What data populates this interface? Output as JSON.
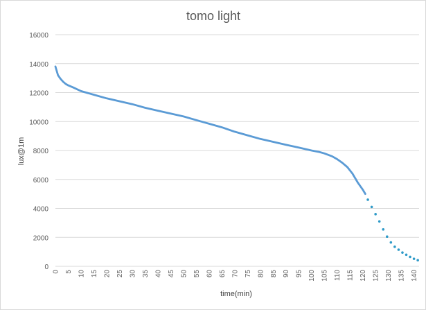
{
  "chart_data": {
    "type": "line",
    "title": "tomo light",
    "xlabel": "time(min)",
    "ylabel": "lux@1m",
    "xlim": [
      0,
      142
    ],
    "ylim": [
      0,
      16000
    ],
    "yticks": [
      0,
      2000,
      4000,
      6000,
      8000,
      10000,
      12000,
      14000,
      16000
    ],
    "xticks": [
      0,
      5,
      10,
      15,
      20,
      25,
      30,
      35,
      40,
      45,
      50,
      55,
      60,
      65,
      70,
      75,
      80,
      85,
      90,
      95,
      100,
      105,
      110,
      115,
      120,
      125,
      130,
      135,
      140
    ],
    "grid": true,
    "legend": "none",
    "colors": {
      "series": "#5b9bd5",
      "line": "#5b9bd5",
      "dots": "#2e9ac8"
    },
    "series": [
      {
        "style": "solid",
        "x": [
          0,
          1,
          2,
          3,
          4,
          5,
          7,
          10,
          15,
          20,
          25,
          30,
          35,
          40,
          45,
          50,
          55,
          60,
          65,
          70,
          75,
          80,
          85,
          90,
          95,
          100,
          103,
          105,
          108,
          110,
          112,
          114,
          116,
          118,
          120,
          121
        ],
        "y": [
          13800,
          13200,
          12950,
          12750,
          12600,
          12500,
          12350,
          12100,
          11850,
          11600,
          11400,
          11200,
          10950,
          10750,
          10550,
          10350,
          10100,
          9850,
          9600,
          9300,
          9050,
          8800,
          8600,
          8400,
          8200,
          8000,
          7900,
          7800,
          7600,
          7400,
          7150,
          6850,
          6400,
          5800,
          5300,
          5000
        ]
      },
      {
        "style": "dotted",
        "x": [
          122,
          123.5,
          125,
          126.5,
          128,
          129.5,
          131,
          132.5,
          134,
          135.5,
          137,
          138.5,
          140,
          141.5
        ],
        "y": [
          4600,
          4100,
          3600,
          3100,
          2550,
          2050,
          1650,
          1350,
          1150,
          950,
          800,
          650,
          520,
          420
        ]
      }
    ]
  }
}
